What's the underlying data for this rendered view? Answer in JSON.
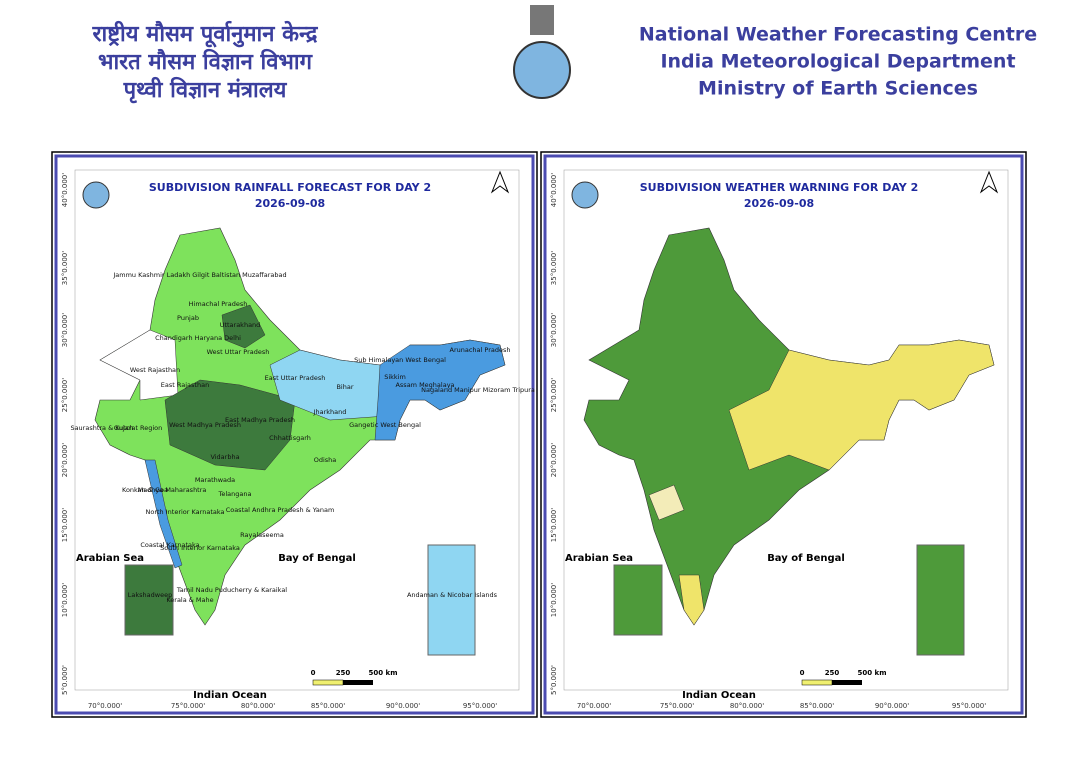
{
  "header": {
    "hindi": [
      "राष्ट्रीय मौसम पूर्वानुमान केन्द्र",
      "भारत मौसम विज्ञान विभाग",
      "पृथ्वी विज्ञान मंत्रालय"
    ],
    "english": [
      "National Weather Forecasting Centre",
      "India Meteorological Department",
      "Ministry of Earth Sciences"
    ]
  },
  "panels": [
    {
      "title": "SUBDIVISION RAINFALL FORECAST FOR DAY 2",
      "date": "2026-09-08",
      "seas": [
        "Arabian Sea",
        "Bay of Bengal",
        "Indian Ocean"
      ],
      "scale": [
        "0",
        "250",
        "500 km"
      ],
      "latitudes": [
        "40°0.000'",
        "35°0.000'",
        "30°0.000'",
        "25°0.000'",
        "20°0.000'",
        "15°0.000'",
        "10°0.000'",
        "5°0.000'"
      ],
      "longitudes": [
        "70°0.000'",
        "75°0.000'",
        "80°0.000'",
        "85°0.000'",
        "90°0.000'",
        "95°0.000'"
      ],
      "regions": [
        "Jammu Kashmir Ladakh Gilgit Baltistan Muzaffarabad",
        "Himachal Pradesh",
        "Punjab",
        "Uttarakhand",
        "Chandigarh Haryana Delhi",
        "West Uttar Pradesh",
        "West Rajasthan",
        "East Rajasthan",
        "Saurashtra & Kutch",
        "Gujarat Region",
        "West Madhya Pradesh",
        "East Madhya Pradesh",
        "Vidarbha",
        "Chhattisgarh",
        "East Uttar Pradesh",
        "Bihar",
        "Jharkhand",
        "Odisha",
        "Sub Himalayan West Bengal",
        "Sikkim",
        "Gangetic West Bengal",
        "Arunachal Pradesh",
        "Assam Meghalaya",
        "Nagaland Manipur Mizoram Tripura",
        "Konkan & Goa",
        "Madhya Maharashtra",
        "Marathwada",
        "North Interior Karnataka",
        "Telangana",
        "Coastal Andhra Pradesh & Yanam",
        "Coastal Karnataka",
        "South Interior Karnataka",
        "Rayalaseema",
        "Tamil Nadu Puducherry & Karaikal",
        "Kerala & Mahe",
        "Lakshadweep",
        "Andaman & Nicobar Islands"
      ]
    },
    {
      "title": "SUBDIVISION WEATHER WARNING FOR DAY 2",
      "date": "2026-09-08",
      "seas": [
        "Arabian Sea",
        "Bay of Bengal",
        "Indian Ocean"
      ],
      "scale": [
        "0",
        "250",
        "500 km"
      ],
      "latitudes": [
        "40°0.000'",
        "35°0.000'",
        "30°0.000'",
        "25°0.000'",
        "20°0.000'",
        "15°0.000'",
        "10°0.000'",
        "5°0.000'"
      ],
      "longitudes": [
        "70°0.000'",
        "75°0.000'",
        "80°0.000'",
        "85°0.000'",
        "90°0.000'",
        "95°0.000'"
      ]
    }
  ]
}
